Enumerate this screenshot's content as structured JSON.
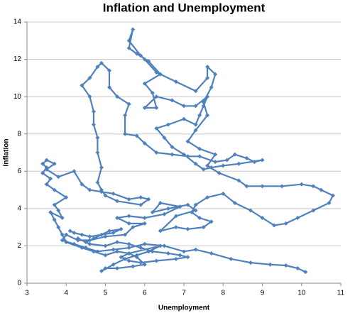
{
  "chart_data": {
    "type": "line",
    "title": "Inflation and Unemployment",
    "x_label": "Unemployment",
    "y_label": "Inflation",
    "color": "#4f81bd",
    "grid": true,
    "markers": "diamond",
    "xlim": [
      3,
      11
    ],
    "ylim": [
      0,
      14
    ],
    "xticks": [
      3,
      4,
      5,
      6,
      7,
      8,
      9,
      10,
      11
    ],
    "yticks": [
      0,
      2,
      4,
      6,
      8,
      10,
      12,
      14
    ],
    "x": [
      4.1,
      4.2,
      4.4,
      4.6,
      4.9,
      5.2,
      5.4,
      5.1,
      4.7,
      4.5,
      4.3,
      4.6,
      5.0,
      5.3,
      5.6,
      5.9,
      6.2,
      6.6,
      6.9,
      7.1,
      6.8,
      6.3,
      5.9,
      5.6,
      5.4,
      5.6,
      5.8,
      6.0,
      5.7,
      5.3,
      5.0,
      4.9,
      5.2,
      5.5,
      5.8,
      6.1,
      6.4,
      5.6,
      5.3,
      5.0,
      4.7,
      4.4,
      4.0,
      3.9,
      3.8,
      3.7,
      3.6,
      3.9,
      3.8,
      3.7,
      4.0,
      3.7,
      3.5,
      3.6,
      3.4,
      3.5,
      3.4,
      3.5,
      3.7,
      3.5,
      3.8,
      4.2,
      4.4,
      4.6,
      4.9,
      5.2,
      5.6,
      5.9,
      6.1,
      5.9,
      5.3,
      5.0,
      4.9,
      4.8,
      4.9,
      4.8,
      4.8,
      4.7,
      4.7,
      4.6,
      4.4,
      4.6,
      4.8,
      4.9,
      5.1,
      5.1,
      5.3,
      5.6,
      5.5,
      5.5,
      5.8,
      6.0,
      6.3,
      6.7,
      7.1,
      7.4,
      7.8,
      8.1,
      8.3,
      8.6,
      8.8,
      9.0,
      8.4,
      8.0,
      7.7,
      7.5,
      7.3,
      7.0,
      6.7,
      6.5,
      6.3,
      6.6,
      7.0,
      7.3,
      7.4,
      7.5,
      7.6,
      7.3,
      7.0,
      6.7,
      6.3,
      6.0,
      6.3,
      6.2,
      6.0,
      6.4,
      6.1,
      5.8,
      5.6,
      5.7,
      5.6,
      5.9,
      6.0,
      6.3,
      6.8,
      7.3,
      7.6,
      7.6,
      7.8,
      7.7,
      7.5,
      7.6,
      7.3,
      7.1,
      7.4,
      7.8,
      7.6,
      7.9,
      8.4,
      8.6,
      9.0,
      9.5,
      10.0,
      10.3,
      10.5,
      10.8,
      10.7,
      10.3,
      9.9,
      9.6,
      9.3,
      9.0,
      8.7,
      8.3,
      8.0,
      7.6,
      7.3,
      7.2,
      7.4,
      7.7,
      7.5,
      7.1,
      6.8,
      6.4,
      6.8,
      7.3,
      7.1,
      6.6,
      6.2,
      6.4,
      6.9,
      6.5,
      6.0,
      5.6,
      5.3,
      5.6,
      6.0,
      5.7,
      5.5,
      5.0,
      4.6,
      4.3,
      4.0,
      3.9,
      4.2,
      4.5,
      4.8,
      5.2,
      5.6,
      6.0,
      6.5,
      7.0,
      7.3,
      7.7,
      8.2,
      8.7,
      9.2,
      9.6,
      9.9,
      10.1
    ],
    "values": [
      2.8,
      2.7,
      2.6,
      2.5,
      2.6,
      2.7,
      2.9,
      2.8,
      2.4,
      2.2,
      2.4,
      2.1,
      2.0,
      2.2,
      2.1,
      1.9,
      1.7,
      1.6,
      1.5,
      1.4,
      1.3,
      1.2,
      1.1,
      1.2,
      1.4,
      1.6,
      1.4,
      1.0,
      0.9,
      0.8,
      0.8,
      0.65,
      1.0,
      1.3,
      1.5,
      1.7,
      2.0,
      1.6,
      1.7,
      1.5,
      1.7,
      1.9,
      2.2,
      2.6,
      3.0,
      3.4,
      3.8,
      3.5,
      3.9,
      4.2,
      4.6,
      5.0,
      5.3,
      5.6,
      5.9,
      6.2,
      6.4,
      6.6,
      6.4,
      6.1,
      5.7,
      6.0,
      5.3,
      5.0,
      4.9,
      4.8,
      4.5,
      4.6,
      4.5,
      4.2,
      4.4,
      4.7,
      5.0,
      5.4,
      6.2,
      7.0,
      7.8,
      8.5,
      9.2,
      10.0,
      10.6,
      11.0,
      11.6,
      11.8,
      11.4,
      10.5,
      10.0,
      9.6,
      9.0,
      8.0,
      7.9,
      7.5,
      7.0,
      6.9,
      6.8,
      6.8,
      6.5,
      6.6,
      6.9,
      6.7,
      6.5,
      6.6,
      6.4,
      6.3,
      6.2,
      6.1,
      6.4,
      6.9,
      7.3,
      7.8,
      8.3,
      8.5,
      8.8,
      8.5,
      9.0,
      9.5,
      10.0,
      9.5,
      9.5,
      9.8,
      10.0,
      9.4,
      9.4,
      10.2,
      10.7,
      11.2,
      11.9,
      12.3,
      12.6,
      13.6,
      13.0,
      12.2,
      12.0,
      11.3,
      10.8,
      10.3,
      11.0,
      11.6,
      11.2,
      10.5,
      9.7,
      9.0,
      8.2,
      7.6,
      7.2,
      6.9,
      6.3,
      5.9,
      5.5,
      5.2,
      5.2,
      5.2,
      5.3,
      5.2,
      5.0,
      4.7,
      4.3,
      3.9,
      3.5,
      3.2,
      3.1,
      3.5,
      3.9,
      4.3,
      4.8,
      4.6,
      4.2,
      3.8,
      3.5,
      3.3,
      3.0,
      2.9,
      3.0,
      2.8,
      3.6,
      3.9,
      4.2,
      4.0,
      3.8,
      4.3,
      4.1,
      3.7,
      3.5,
      3.6,
      3.5,
      3.2,
      3.2,
      3.0,
      2.6,
      2.5,
      2.3,
      2.3,
      2.6,
      2.3,
      2.1,
      1.9,
      1.7,
      1.8,
      1.9,
      2.1,
      2.0,
      1.7,
      1.8,
      1.6,
      1.3,
      1.1,
      1.0,
      0.95,
      0.8,
      0.6
    ]
  }
}
